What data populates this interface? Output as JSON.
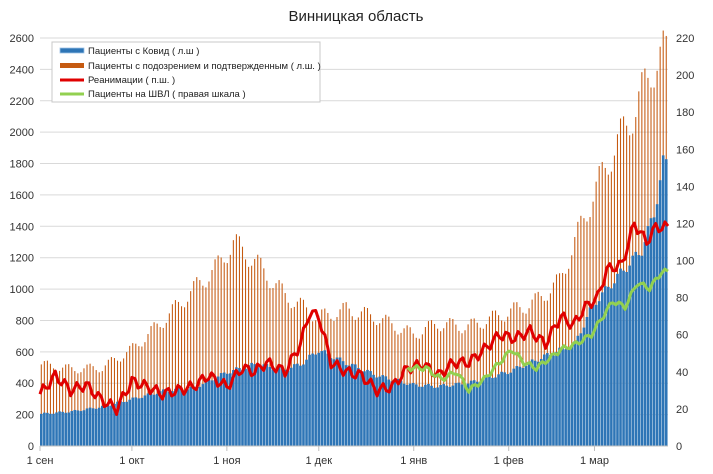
{
  "chart_data": {
    "type": "bar",
    "title": "Винницкая область",
    "y_left": {
      "min": 0,
      "max": 2600,
      "step": 200
    },
    "y_right": {
      "min": 0,
      "max": 220,
      "step": 20
    },
    "x_ticks": [
      "1 сен",
      "1 окт",
      "1 ноя",
      "1 дек",
      "1 янв",
      "1 фев",
      "1 мар"
    ],
    "x_tick_days": [
      0,
      30,
      61,
      91,
      122,
      153,
      181
    ],
    "days_total": 205,
    "legend": [
      "Пациенты с Ковид ( л.ш )",
      "Пациенты с подозрением и подтвержденным ( л.ш. )",
      "Реанимации ( п.ш. )",
      "Пациенты на ШВЛ ( правая шкала )"
    ],
    "colors": {
      "covid": "#2e75b6",
      "suspected": "#c55a11",
      "icu": "#e00000",
      "vent": "#92d050",
      "grid": "#d9d9d9"
    },
    "series": [
      {
        "name": "Пациенты с Ковид ( л.ш )",
        "axis": "left",
        "type": "bar",
        "points": [
          [
            0,
            205
          ],
          [
            10,
            220
          ],
          [
            20,
            250
          ],
          [
            30,
            300
          ],
          [
            40,
            350
          ],
          [
            50,
            370
          ],
          [
            61,
            470
          ],
          [
            70,
            520
          ],
          [
            80,
            490
          ],
          [
            85,
            520
          ],
          [
            91,
            610
          ],
          [
            100,
            530
          ],
          [
            110,
            450
          ],
          [
            122,
            390
          ],
          [
            130,
            380
          ],
          [
            140,
            400
          ],
          [
            153,
            470
          ],
          [
            165,
            570
          ],
          [
            175,
            650
          ],
          [
            181,
            900
          ],
          [
            190,
            1100
          ],
          [
            197,
            1250
          ],
          [
            201,
            1480
          ],
          [
            204,
            1800
          ]
        ]
      },
      {
        "name": "Пациенты с подозрением и подтвержденным ( л.ш. )",
        "axis": "left",
        "type": "bar",
        "points": [
          [
            0,
            520
          ],
          [
            10,
            490
          ],
          [
            20,
            500
          ],
          [
            30,
            620
          ],
          [
            40,
            800
          ],
          [
            50,
            1000
          ],
          [
            58,
            1150
          ],
          [
            63,
            1300
          ],
          [
            70,
            1180
          ],
          [
            80,
            960
          ],
          [
            91,
            820
          ],
          [
            100,
            870
          ],
          [
            110,
            820
          ],
          [
            122,
            710
          ],
          [
            130,
            780
          ],
          [
            140,
            760
          ],
          [
            153,
            850
          ],
          [
            162,
            920
          ],
          [
            170,
            1050
          ],
          [
            181,
            1600
          ],
          [
            188,
            1900
          ],
          [
            195,
            2150
          ],
          [
            200,
            2400
          ],
          [
            204,
            2500
          ]
        ]
      },
      {
        "name": "Реанимации ( п.ш. )",
        "axis": "right",
        "type": "line",
        "points": [
          [
            0,
            28
          ],
          [
            5,
            38
          ],
          [
            10,
            30
          ],
          [
            15,
            33
          ],
          [
            20,
            25
          ],
          [
            25,
            20
          ],
          [
            30,
            35
          ],
          [
            35,
            32
          ],
          [
            40,
            28
          ],
          [
            45,
            30
          ],
          [
            50,
            32
          ],
          [
            55,
            38
          ],
          [
            61,
            32
          ],
          [
            66,
            42
          ],
          [
            70,
            40
          ],
          [
            74,
            45
          ],
          [
            80,
            40
          ],
          [
            85,
            55
          ],
          [
            88,
            72
          ],
          [
            91,
            70
          ],
          [
            95,
            45
          ],
          [
            100,
            40
          ],
          [
            105,
            38
          ],
          [
            110,
            30
          ],
          [
            115,
            32
          ],
          [
            120,
            42
          ],
          [
            125,
            44
          ],
          [
            130,
            38
          ],
          [
            135,
            45
          ],
          [
            140,
            45
          ],
          [
            145,
            52
          ],
          [
            150,
            60
          ],
          [
            155,
            58
          ],
          [
            160,
            62
          ],
          [
            165,
            55
          ],
          [
            170,
            70
          ],
          [
            174,
            65
          ],
          [
            178,
            75
          ],
          [
            182,
            80
          ],
          [
            185,
            95
          ],
          [
            190,
            98
          ],
          [
            194,
            120
          ],
          [
            198,
            110
          ],
          [
            201,
            118
          ],
          [
            205,
            118
          ]
        ]
      },
      {
        "name": "Пациенты на ШВЛ ( правая шкала )",
        "axis": "right",
        "type": "line",
        "points": [
          [
            120,
            42
          ],
          [
            126,
            42
          ],
          [
            131,
            36
          ],
          [
            136,
            40
          ],
          [
            140,
            30
          ],
          [
            145,
            36
          ],
          [
            150,
            45
          ],
          [
            154,
            52
          ],
          [
            158,
            45
          ],
          [
            162,
            42
          ],
          [
            167,
            48
          ],
          [
            170,
            52
          ],
          [
            175,
            55
          ],
          [
            180,
            60
          ],
          [
            183,
            68
          ],
          [
            187,
            78
          ],
          [
            191,
            75
          ],
          [
            195,
            88
          ],
          [
            199,
            85
          ],
          [
            203,
            94
          ],
          [
            205,
            94
          ]
        ]
      }
    ]
  }
}
